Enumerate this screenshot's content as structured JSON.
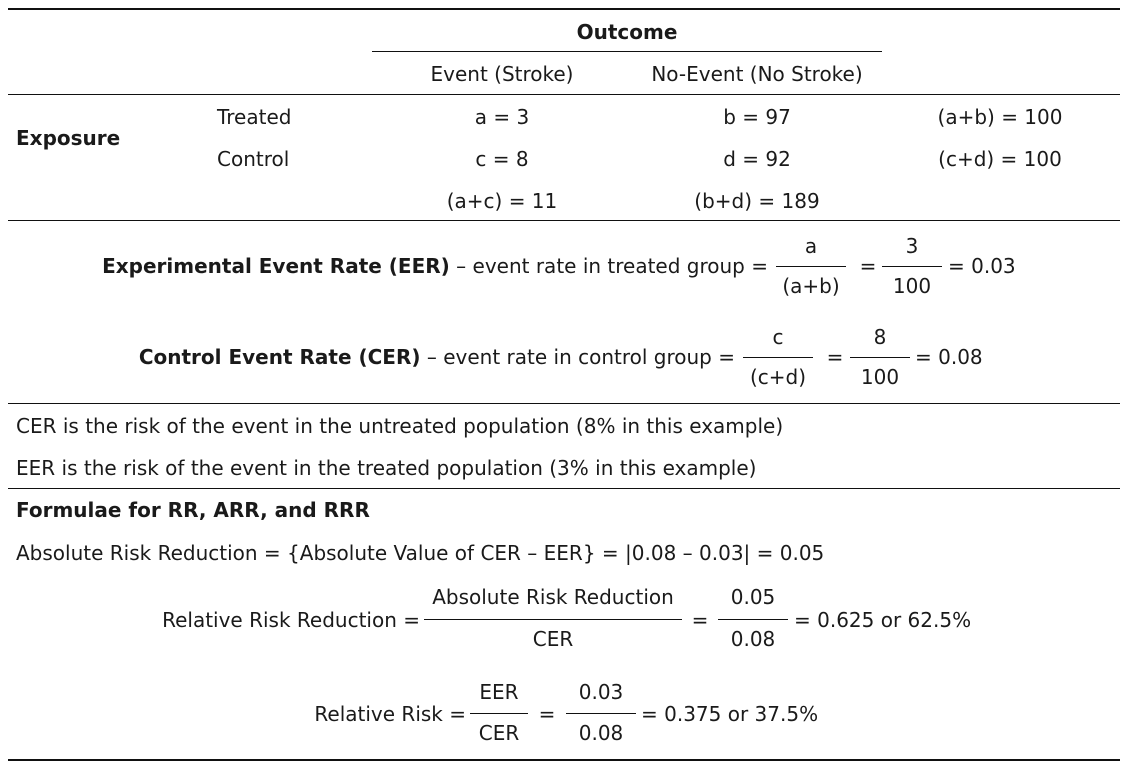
{
  "table": {
    "header": {
      "outcome": "Outcome",
      "event_col": "Event (Stroke)",
      "noevent_col": "No-Event (No Stroke)"
    },
    "exposure_label": "Exposure",
    "rows": [
      {
        "label": "Treated",
        "event": "a = 3",
        "noevent": "b = 97",
        "total": "(a+b) = 100"
      },
      {
        "label": "Control",
        "event": "c = 8",
        "noevent": "d = 92",
        "total": "(c+d) = 100"
      }
    ],
    "totals": {
      "event": "(a+c) = 11",
      "noevent": "(b+d) = 189"
    }
  },
  "rates": {
    "eer": {
      "term": "Experimental Event Rate (EER)",
      "desc": "– event rate in treated group =",
      "frac1_num": "a",
      "frac1_den": "(a+b)",
      "eq": "=",
      "frac2_num": "3",
      "frac2_den": "100",
      "result": "= 0.03"
    },
    "cer": {
      "term": "Control Event Rate (CER)",
      "desc": "– event rate in control group =",
      "frac1_num": "c",
      "frac1_den": "(c+d)",
      "eq": "=",
      "frac2_num": "8",
      "frac2_den": "100",
      "result": "= 0.08"
    }
  },
  "notes": [
    "CER is the risk of the event in the untreated population (8% in this example)",
    "EER is the risk of the event in the treated population (3% in this example)"
  ],
  "formulae": {
    "heading": "Formulae for RR, ARR, and RRR",
    "arr": "Absolute Risk Reduction = {Absolute Value of CER – EER} = |0.08 – 0.03| = 0.05",
    "rrr": {
      "lhs": "Relative Risk Reduction =",
      "frac1_num": "Absolute Risk Reduction",
      "frac1_den": "CER",
      "eq": "=",
      "frac2_num": "0.05",
      "frac2_den": "0.08",
      "result": "= 0.625 or 62.5%"
    },
    "rr": {
      "lhs": "Relative Risk =",
      "frac1_num": "EER",
      "frac1_den": "CER",
      "eq": "=",
      "frac2_num": "0.03",
      "frac2_den": "0.08",
      "result": "= 0.375 or 37.5%"
    }
  }
}
